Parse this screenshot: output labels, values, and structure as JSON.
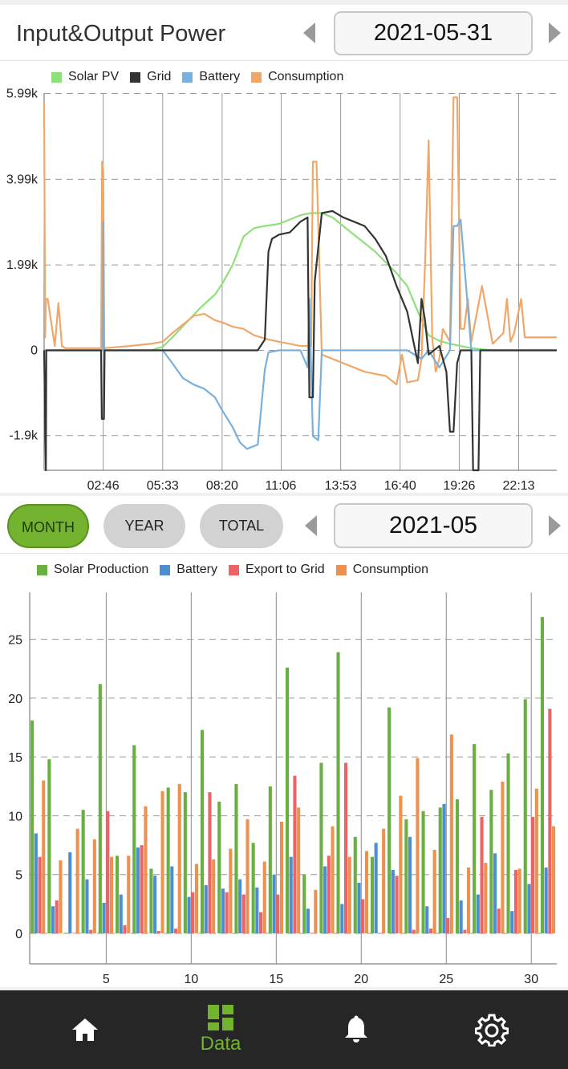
{
  "header": {
    "title": "Input&Output Power",
    "date": "2021-05-31"
  },
  "power_chart": {
    "legend": [
      {
        "label": "Solar PV",
        "color": "#8ee17a"
      },
      {
        "label": "Grid",
        "color": "#333333"
      },
      {
        "label": "Battery",
        "color": "#78b1dd"
      },
      {
        "label": "Consumption",
        "color": "#f0a769"
      }
    ],
    "y_ticks": [
      "5.99k",
      "3.99k",
      "1.99k",
      "0",
      "-1.9k"
    ],
    "x_ticks": [
      "02:46",
      "05:33",
      "08:20",
      "11:06",
      "13:53",
      "16:40",
      "19:26",
      "22:13"
    ]
  },
  "period_tabs": {
    "month": "MONTH",
    "year": "YEAR",
    "total": "TOTAL"
  },
  "period_date": "2021-05",
  "energy_chart": {
    "legend": [
      {
        "label": "Solar Production",
        "color": "#6aaf41"
      },
      {
        "label": "Battery",
        "color": "#4c8fd0"
      },
      {
        "label": "Export to Grid",
        "color": "#ee6366"
      },
      {
        "label": "Consumption",
        "color": "#ee914e"
      }
    ],
    "y_ticks": [
      "25",
      "20",
      "15",
      "10",
      "5",
      "0"
    ],
    "x_ticks": [
      "5",
      "10",
      "15",
      "20",
      "25",
      "30"
    ]
  },
  "nav": {
    "data_label": "Data"
  },
  "chart_data": [
    {
      "type": "line",
      "title": "Input&Output Power",
      "xlabel": "",
      "ylabel": "",
      "x_range": [
        "00:00",
        "24:00"
      ],
      "ylim": [
        -2800,
        6000
      ],
      "series": [
        {
          "name": "Solar PV",
          "x": [
            "00:00",
            "05:00",
            "05:33",
            "06:00",
            "06:40",
            "07:20",
            "08:00",
            "08:20",
            "08:50",
            "09:20",
            "09:50",
            "10:20",
            "11:00",
            "11:30",
            "12:00",
            "12:30",
            "13:00",
            "13:30",
            "14:00",
            "14:30",
            "15:00",
            "15:30",
            "16:00",
            "16:30",
            "17:00",
            "17:30",
            "18:00",
            "18:30",
            "19:00",
            "19:30",
            "20:00",
            "21:00",
            "24:00"
          ],
          "values": [
            0,
            0,
            80,
            300,
            650,
            1000,
            1300,
            1550,
            2000,
            2650,
            2850,
            2900,
            2950,
            3050,
            3150,
            3200,
            3200,
            3100,
            2900,
            2700,
            2500,
            2300,
            2050,
            1800,
            1500,
            900,
            350,
            220,
            150,
            100,
            50,
            0,
            0
          ]
        },
        {
          "name": "Grid",
          "x": [
            "00:00",
            "00:05",
            "00:06",
            "02:40",
            "02:42",
            "02:48",
            "02:50",
            "10:00",
            "10:20",
            "10:30",
            "10:40",
            "11:00",
            "11:30",
            "12:00",
            "12:20",
            "12:25",
            "12:35",
            "12:40",
            "13:00",
            "13:30",
            "14:00",
            "14:30",
            "15:00",
            "15:30",
            "16:00",
            "16:30",
            "17:00",
            "17:30",
            "17:40",
            "17:50",
            "18:00",
            "18:30",
            "18:50",
            "19:00",
            "19:10",
            "19:20",
            "19:30",
            "20:00",
            "20:05",
            "20:20",
            "20:25",
            "20:30",
            "24:00"
          ],
          "values": [
            0,
            -2800,
            0,
            0,
            -1600,
            -1600,
            0,
            0,
            250,
            2300,
            2600,
            2700,
            2750,
            3000,
            3100,
            -1100,
            -1100,
            1600,
            3200,
            3250,
            3100,
            3000,
            2900,
            2600,
            2200,
            1500,
            900,
            -300,
            1200,
            700,
            -100,
            100,
            -500,
            -1900,
            -1900,
            -300,
            0,
            0,
            -2800,
            -2800,
            0,
            0,
            0
          ]
        },
        {
          "name": "Battery",
          "x": [
            "00:00",
            "02:44",
            "02:46",
            "02:48",
            "05:00",
            "05:33",
            "06:00",
            "06:30",
            "07:00",
            "07:30",
            "08:00",
            "08:20",
            "08:50",
            "09:10",
            "09:30",
            "10:00",
            "10:20",
            "10:30",
            "11:00",
            "12:00",
            "12:20",
            "12:25",
            "12:35",
            "12:50",
            "13:00",
            "15:00",
            "17:00",
            "17:40",
            "18:00",
            "18:30",
            "19:00",
            "19:10",
            "19:20",
            "19:30",
            "20:00",
            "20:30",
            "24:00"
          ],
          "values": [
            0,
            0,
            3000,
            0,
            0,
            0,
            -300,
            -650,
            -800,
            -900,
            -1100,
            -1400,
            -1800,
            -2150,
            -2300,
            -2200,
            -450,
            -50,
            0,
            0,
            -400,
            1200,
            -2000,
            -2100,
            0,
            0,
            0,
            -200,
            0,
            -400,
            0,
            2900,
            2900,
            3050,
            0,
            0,
            0
          ]
        },
        {
          "name": "Consumption",
          "x": [
            "00:00",
            "00:03",
            "00:05",
            "00:10",
            "00:30",
            "00:40",
            "00:50",
            "01:00",
            "02:40",
            "02:43",
            "02:46",
            "02:49",
            "04:00",
            "05:00",
            "05:33",
            "06:00",
            "06:30",
            "07:00",
            "07:30",
            "08:00",
            "08:20",
            "08:50",
            "09:20",
            "09:50",
            "10:30",
            "11:00",
            "11:30",
            "12:00",
            "12:30",
            "12:35",
            "12:45",
            "13:00",
            "14:00",
            "15:00",
            "16:00",
            "16:30",
            "16:45",
            "17:00",
            "17:30",
            "17:40",
            "17:50",
            "18:00",
            "18:10",
            "18:20",
            "18:30",
            "18:40",
            "19:00",
            "19:10",
            "19:20",
            "19:30",
            "19:40",
            "19:50",
            "20:00",
            "20:30",
            "21:00",
            "21:30",
            "21:40",
            "21:50",
            "22:00",
            "22:20",
            "22:30",
            "23:00",
            "24:00"
          ],
          "values": [
            5800,
            300,
            1200,
            1200,
            100,
            1100,
            100,
            50,
            50,
            4400,
            4200,
            50,
            100,
            150,
            200,
            400,
            600,
            800,
            850,
            700,
            650,
            550,
            500,
            350,
            250,
            200,
            150,
            100,
            100,
            4400,
            4400,
            -100,
            -300,
            -500,
            -600,
            -800,
            -100,
            -750,
            -700,
            -200,
            2000,
            4900,
            300,
            -500,
            -200,
            500,
            200,
            5900,
            5900,
            500,
            500,
            1200,
            200,
            1500,
            150,
            400,
            1200,
            200,
            400,
            1200,
            300,
            300,
            300
          ]
        }
      ]
    },
    {
      "type": "bar",
      "title": "",
      "xlabel": "",
      "ylabel": "",
      "ylim": [
        0,
        29
      ],
      "categories": [
        1,
        2,
        3,
        4,
        5,
        6,
        7,
        8,
        9,
        10,
        11,
        12,
        13,
        14,
        15,
        16,
        17,
        18,
        19,
        20,
        21,
        22,
        23,
        24,
        25,
        26,
        27,
        28,
        29,
        30,
        31
      ],
      "series": [
        {
          "name": "Solar Production",
          "values": [
            18.1,
            14.8,
            0,
            10.5,
            21.2,
            6.6,
            16.0,
            5.5,
            12.4,
            12.0,
            17.3,
            11.2,
            12.7,
            7.7,
            12.5,
            22.6,
            5.0,
            14.5,
            23.9,
            8.2,
            6.5,
            19.2,
            9.7,
            10.4,
            10.7,
            11.4,
            16.1,
            12.2,
            15.3,
            19.9,
            26.9
          ]
        },
        {
          "name": "Battery",
          "values": [
            8.5,
            2.3,
            6.9,
            4.6,
            2.6,
            3.3,
            7.3,
            4.9,
            5.7,
            3.1,
            4.1,
            3.8,
            4.6,
            3.9,
            5.0,
            6.5,
            2.1,
            5.7,
            2.5,
            4.3,
            7.7,
            5.4,
            8.2,
            2.3,
            11.0,
            2.8,
            3.3,
            6.8,
            1.9,
            4.2,
            5.6
          ]
        },
        {
          "name": "Export to Grid",
          "values": [
            6.5,
            2.8,
            0,
            0.3,
            10.4,
            0.7,
            7.5,
            0.2,
            0.4,
            3.5,
            12.0,
            3.5,
            3.3,
            1.8,
            3.3,
            13.4,
            0,
            6.6,
            14.5,
            2.9,
            0,
            4.9,
            0.3,
            0.4,
            1.3,
            0.3,
            9.9,
            2.1,
            5.4,
            9.9,
            19.1
          ]
        },
        {
          "name": "Consumption",
          "values": [
            13.0,
            6.2,
            8.9,
            8.0,
            6.5,
            6.6,
            10.8,
            12.1,
            12.7,
            5.9,
            6.3,
            7.2,
            9.7,
            6.1,
            9.5,
            10.7,
            3.7,
            9.1,
            6.5,
            7.0,
            8.9,
            11.7,
            14.9,
            7.1,
            16.9,
            5.6,
            6.0,
            12.9,
            5.5,
            12.3,
            9.1
          ]
        }
      ]
    }
  ]
}
